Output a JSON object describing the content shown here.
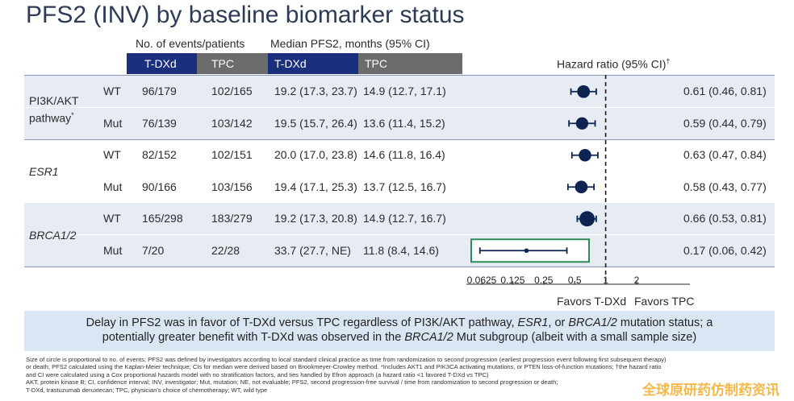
{
  "title": "PFS2 (INV) by baseline biomarker status",
  "headers": {
    "events": "No. of events/patients",
    "median": "Median PFS2, months (95% CI)",
    "hr": "Hazard ratio (95% CI)",
    "hr_sup": "†",
    "arm1": "T-DXd",
    "arm2": "TPC"
  },
  "groups": [
    {
      "name": "PI3K/AKT pathway*",
      "italic": false,
      "shaded": true
    },
    {
      "name": "ESR1",
      "italic": true,
      "shaded": false
    },
    {
      "name": "BRCA1/2",
      "italic": true,
      "shaded": true
    }
  ],
  "rows": [
    {
      "group": 0,
      "sub": "WT",
      "ev_tdxd": "96/179",
      "ev_tpc": "102/165",
      "med_tdxd": "19.2 (17.3, 23.7)",
      "med_tpc": "14.9 (12.7, 17.1)",
      "hr_text": "0.61 (0.46, 0.81)"
    },
    {
      "group": 0,
      "sub": "Mut",
      "ev_tdxd": "76/139",
      "ev_tpc": "103/142",
      "med_tdxd": "19.5 (15.7, 26.4)",
      "med_tpc": "13.6 (11.4, 15.2)",
      "hr_text": "0.59 (0.44, 0.79)"
    },
    {
      "group": 1,
      "sub": "WT",
      "ev_tdxd": "82/152",
      "ev_tpc": "102/151",
      "med_tdxd": "20.0 (17.0, 23.8)",
      "med_tpc": "14.6 (11.8, 16.4)",
      "hr_text": "0.63 (0.47, 0.84)"
    },
    {
      "group": 1,
      "sub": "Mut",
      "ev_tdxd": "90/166",
      "ev_tpc": "103/156",
      "med_tdxd": "19.4 (17.1, 25.3)",
      "med_tpc": "13.7 (12.5, 16.7)",
      "hr_text": "0.58 (0.43, 0.77)"
    },
    {
      "group": 2,
      "sub": "WT",
      "ev_tdxd": "165/298",
      "ev_tpc": "183/279",
      "med_tdxd": "19.2 (17.3, 20.8)",
      "med_tpc": "14.9 (12.7, 16.7)",
      "hr_text": "0.66 (0.53, 0.81)"
    },
    {
      "group": 2,
      "sub": "Mut",
      "ev_tdxd": "7/20",
      "ev_tpc": "22/28",
      "med_tdxd": "33.7 (27.7, NE)",
      "med_tpc": "11.8 (8.4, 14.6)",
      "hr_text": "0.17 (0.06, 0.42)"
    }
  ],
  "chart_data": {
    "type": "forest",
    "scale": "log2",
    "xlim": [
      0.0625,
      2
    ],
    "ticks": [
      0.0625,
      0.125,
      0.25,
      0.5,
      1,
      2
    ],
    "tick_labels": [
      "0.0625",
      "0.125",
      "0.25",
      "0.5",
      "1",
      "2"
    ],
    "reference": 1,
    "favors_left": "Favors T-DXd",
    "favors_right": "Favors TPC",
    "points": [
      {
        "label": "PI3K/AKT pathway WT",
        "hr": 0.61,
        "lo": 0.46,
        "hi": 0.81,
        "events": 198
      },
      {
        "label": "PI3K/AKT pathway Mut",
        "hr": 0.59,
        "lo": 0.44,
        "hi": 0.79,
        "events": 179
      },
      {
        "label": "ESR1 WT",
        "hr": 0.63,
        "lo": 0.47,
        "hi": 0.84,
        "events": 184
      },
      {
        "label": "ESR1 Mut",
        "hr": 0.58,
        "lo": 0.43,
        "hi": 0.77,
        "events": 193
      },
      {
        "label": "BRCA1/2 WT",
        "hr": 0.66,
        "lo": 0.53,
        "hi": 0.81,
        "events": 348
      },
      {
        "label": "BRCA1/2 Mut",
        "hr": 0.17,
        "lo": 0.06,
        "hi": 0.42,
        "events": 29
      }
    ],
    "highlight": "BRCA1/2 Mut",
    "colors": {
      "marker": "#0d2451",
      "reference": "#1a1a1a",
      "highlight": "#2e8b57"
    }
  },
  "callout": {
    "p1": "Delay in PFS2 was in favor of T-DXd versus TPC regardless of PI3K/AKT pathway, ",
    "i1": "ESR1",
    "p2": ", or ",
    "i2": "BRCA1/2",
    "p3": " mutation status; a",
    "p4": "potentially greater benefit with T-DXd was observed in the ",
    "i3": "BRCA1/2",
    "p5": " Mut subgroup (albeit with a small sample size)"
  },
  "footnotes": [
    "Size of circle is proportional to no. of events; PFS2 was defined by investigators according to local standard clinical practice as time from randomization to second progression (earliest progression event following first subsequent therapy)",
    "or death; PFS2 calculated using the Kaplan-Meier technique; CIs for median were derived based on Brookmeyer-Crowley method. *Includes AKT1 and PIK3CA activating mutations, or PTEN loss-of-function mutations; †the hazard ratio",
    "and CI were calculated using a Cox proportional hazards model with no stratification factors, and ties handled by Efron approach (a hazard ratio <1 favored T-DXd vs TPC)",
    "AKT, protein kinase B; CI, confidence interval; INV, investigator; Mut, mutation; NE, not evaluable; PFS2, second progression-free survival / time from randomization to second progression or death;",
    "T-DXd, trastuzumab deruxtecan; TPC, physician's choice of chemotherapy; WT, wild type"
  ],
  "watermark": "全球原研药仿制药资讯"
}
